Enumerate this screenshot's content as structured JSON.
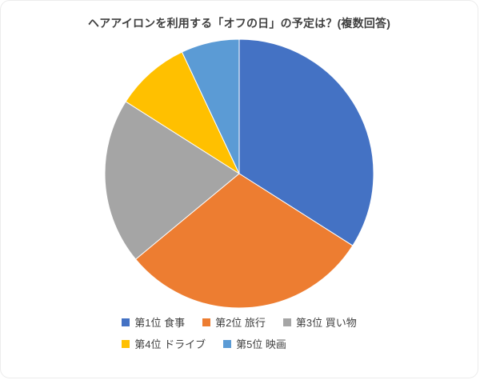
{
  "chart_data": {
    "type": "pie",
    "title": "ヘアアイロンを利用する「オフの日」の予定は？(複数回答)",
    "labels": [
      "第1位 食事",
      "第2位 旅行",
      "第3位 買い物",
      "第4位 ドライブ",
      "第5位 映画"
    ],
    "values": [
      34,
      30,
      20,
      9,
      7
    ],
    "colors": [
      "#4472C4",
      "#ED7D31",
      "#A5A5A5",
      "#FFC000",
      "#5B9BD5"
    ],
    "start_angle_deg": 0,
    "direction": "clockwise",
    "legend_position": "bottom",
    "legend_rows": [
      3,
      2
    ]
  }
}
